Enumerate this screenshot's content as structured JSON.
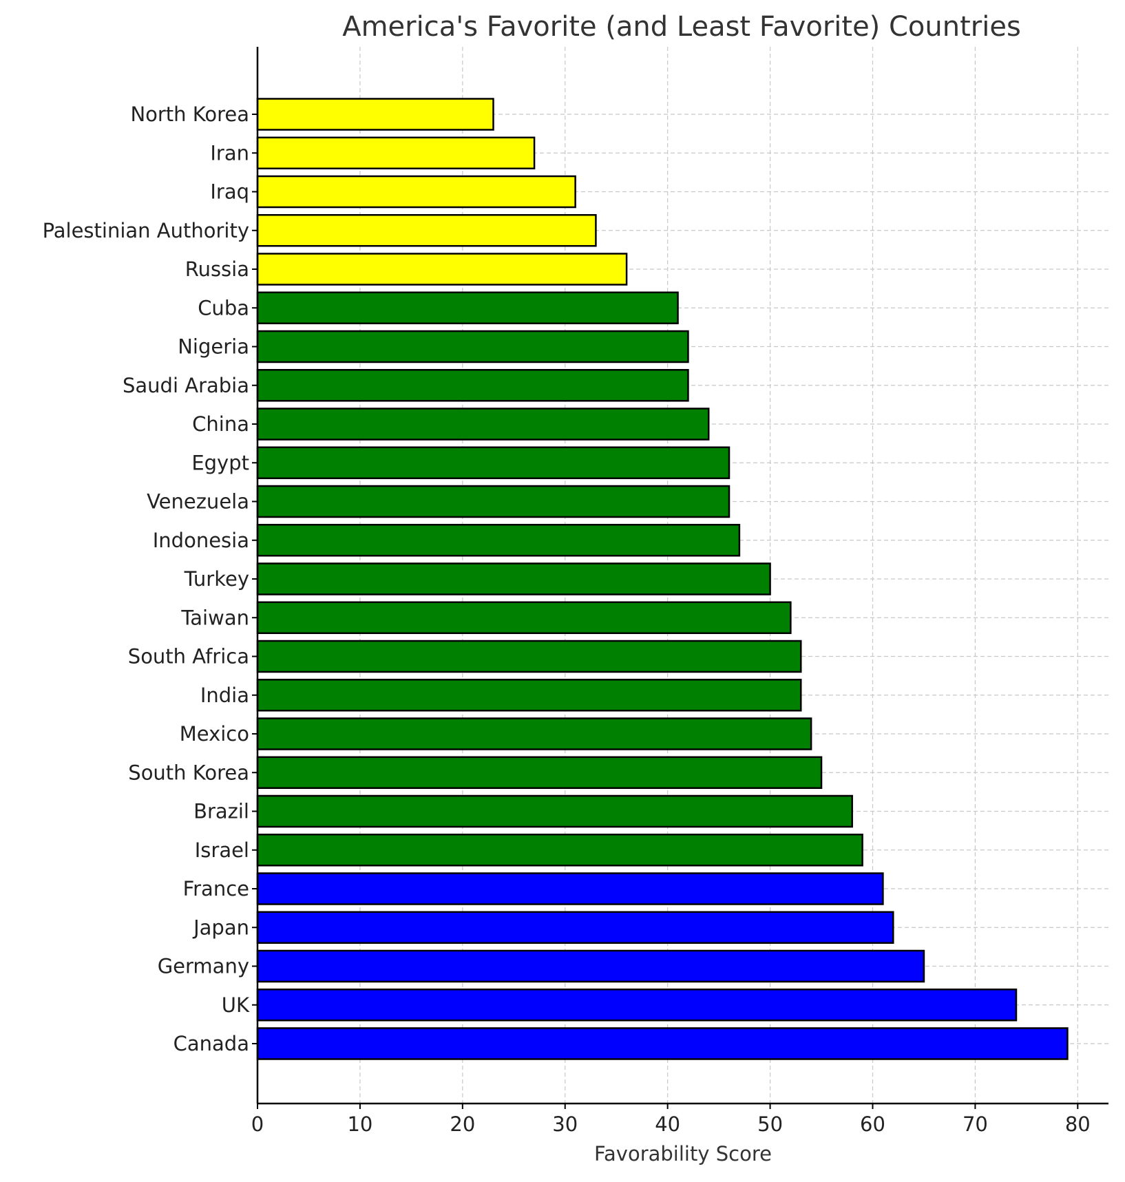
{
  "chart_data": {
    "type": "bar",
    "orientation": "horizontal",
    "title": "America's Favorite (and Least Favorite) Countries",
    "xlabel": "Favorability Score",
    "ylabel": "",
    "xlim": [
      0,
      83
    ],
    "xticks": [
      0,
      10,
      20,
      30,
      40,
      50,
      60,
      70,
      80
    ],
    "grid": true,
    "categories": [
      "Canada",
      "UK",
      "Germany",
      "Japan",
      "France",
      "Israel",
      "Brazil",
      "South Korea",
      "Mexico",
      "India",
      "South Africa",
      "Taiwan",
      "Turkey",
      "Indonesia",
      "Venezuela",
      "Egypt",
      "China",
      "Saudi Arabia",
      "Nigeria",
      "Cuba",
      "Russia",
      "Palestinian Authority",
      "Iraq",
      "Iran",
      "North Korea"
    ],
    "values": [
      79,
      74,
      65,
      62,
      61,
      59,
      58,
      55,
      54,
      53,
      53,
      52,
      50,
      47,
      46,
      46,
      44,
      42,
      42,
      41,
      36,
      33,
      31,
      27,
      23
    ],
    "colors": [
      "#0000ff",
      "#0000ff",
      "#0000ff",
      "#0000ff",
      "#0000ff",
      "#008000",
      "#008000",
      "#008000",
      "#008000",
      "#008000",
      "#008000",
      "#008000",
      "#008000",
      "#008000",
      "#008000",
      "#008000",
      "#008000",
      "#008000",
      "#008000",
      "#008000",
      "#ffff00",
      "#ffff00",
      "#ffff00",
      "#ffff00",
      "#ffff00"
    ]
  }
}
